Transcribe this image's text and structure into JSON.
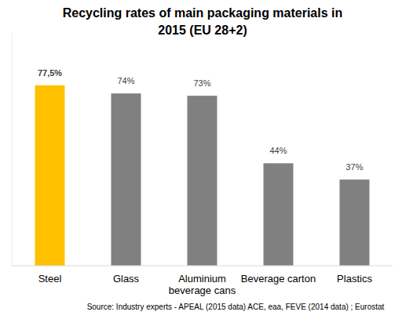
{
  "chart_data": {
    "type": "bar",
    "title": "Recycling rates of main packaging materials in 2015 (EU 28+2)",
    "categories": [
      "Steel",
      "Glass",
      "Aluminium beverage cans",
      "Beverage carton",
      "Plastics"
    ],
    "values": [
      77.5,
      74,
      73,
      44,
      37
    ],
    "value_labels": [
      "77,5%",
      "74%",
      "73%",
      "44%",
      "37%"
    ],
    "colors": [
      "#ffc000",
      "#808080",
      "#808080",
      "#808080",
      "#808080"
    ],
    "ylim": [
      0,
      100
    ],
    "data_labels": true,
    "tick_labels": "x",
    "grid": false,
    "annotations": [
      "Source: Industry experts - APEAL (2015 data) ACE, eaa, FEVE (2014 data) ; Eurostat"
    ]
  }
}
